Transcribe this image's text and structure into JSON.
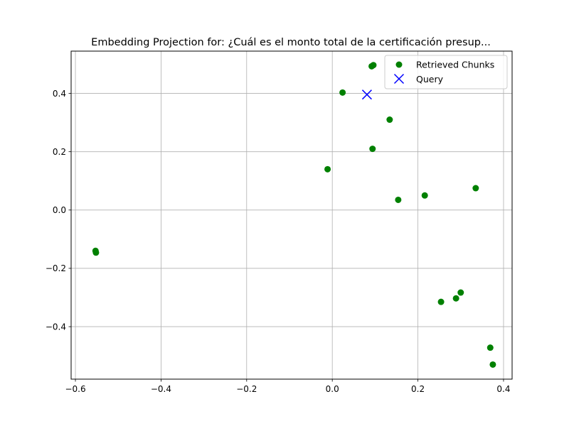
{
  "chart_data": {
    "type": "scatter",
    "title": "Embedding Projection for: ¿Cuál es el monto total de la certificación presup...",
    "xlabel": "",
    "ylabel": "",
    "xlim": [
      -0.61,
      0.42
    ],
    "ylim": [
      -0.58,
      0.545
    ],
    "grid": true,
    "legend_position": "top-right",
    "x_ticks": [
      -0.6,
      -0.4,
      -0.2,
      0.0,
      0.2,
      0.4
    ],
    "x_tick_labels": [
      "−0.6",
      "−0.4",
      "−0.2",
      "0.0",
      "0.2",
      "0.4"
    ],
    "y_ticks": [
      -0.4,
      -0.2,
      0.0,
      0.2,
      0.4
    ],
    "y_tick_labels": [
      "−0.4",
      "−0.2",
      "0.0",
      "0.2",
      "0.4"
    ],
    "series": [
      {
        "name": "Retrieved Chunks",
        "marker": "circle",
        "color": "#008000",
        "points": [
          {
            "x": 0.092,
            "y": 0.493
          },
          {
            "x": 0.096,
            "y": 0.497
          },
          {
            "x": 0.024,
            "y": 0.403
          },
          {
            "x": 0.134,
            "y": 0.31
          },
          {
            "x": 0.094,
            "y": 0.21
          },
          {
            "x": -0.011,
            "y": 0.14
          },
          {
            "x": 0.335,
            "y": 0.075
          },
          {
            "x": 0.216,
            "y": 0.05
          },
          {
            "x": 0.154,
            "y": 0.035
          },
          {
            "x": -0.553,
            "y": -0.14
          },
          {
            "x": -0.552,
            "y": -0.146
          },
          {
            "x": 0.3,
            "y": -0.283
          },
          {
            "x": 0.289,
            "y": -0.303
          },
          {
            "x": 0.254,
            "y": -0.315
          },
          {
            "x": 0.369,
            "y": -0.472
          },
          {
            "x": 0.375,
            "y": -0.53
          }
        ]
      },
      {
        "name": "Query",
        "marker": "x",
        "color": "#0000ff",
        "points": [
          {
            "x": 0.081,
            "y": 0.396
          }
        ]
      }
    ]
  }
}
